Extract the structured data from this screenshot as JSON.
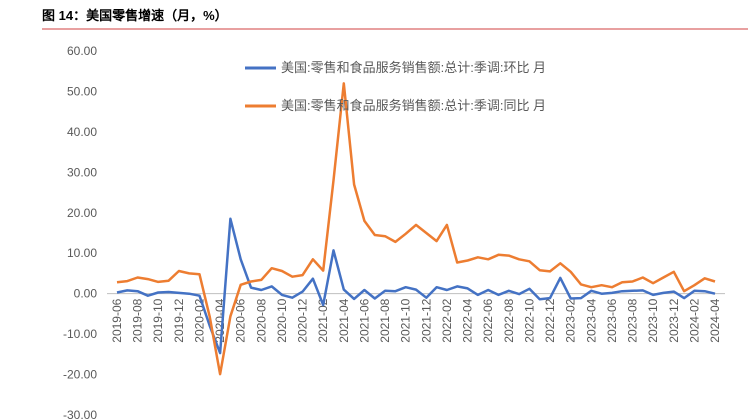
{
  "header": {
    "title": "图 14：美国零售增速（月，%）"
  },
  "chart_data": {
    "type": "line",
    "categories": [
      "2019-06",
      null,
      "2019-08",
      null,
      "2019-10",
      null,
      "2019-12",
      null,
      "2020-02",
      null,
      "2020-04",
      null,
      "2020-06",
      null,
      "2020-08",
      null,
      "2020-10",
      null,
      "2020-12",
      null,
      "2021-02",
      null,
      "2021-04",
      null,
      "2021-06",
      null,
      "2021-08",
      null,
      "2021-10",
      null,
      "2021-12",
      null,
      "2022-02",
      null,
      "2022-04",
      null,
      "2022-06",
      null,
      "2022-08",
      null,
      "2022-10",
      null,
      "2022-12",
      null,
      "2023-02",
      null,
      "2023-04",
      null,
      "2023-06",
      null,
      "2023-08",
      null,
      "2023-10",
      null,
      "2023-12",
      null,
      "2024-02",
      null,
      "2024-04"
    ],
    "series": [
      {
        "name": "美国:零售和食品服务销售额:总计:季调:环比 月",
        "color": "#4472c4",
        "values": [
          0.3,
          0.8,
          0.6,
          -0.5,
          0.3,
          0.4,
          0.2,
          0.0,
          -0.5,
          -8.0,
          -14.7,
          18.5,
          8.5,
          1.5,
          0.9,
          1.8,
          -0.3,
          -1.0,
          0.5,
          3.7,
          -2.8,
          10.7,
          1.0,
          -1.3,
          0.9,
          -1.2,
          0.7,
          0.6,
          1.6,
          1.0,
          -1.0,
          1.6,
          0.9,
          1.8,
          1.3,
          -0.3,
          0.9,
          -0.3,
          0.7,
          -0.1,
          1.2,
          -1.4,
          -1.1,
          3.9,
          -1.2,
          -1.1,
          0.7,
          0.0,
          0.2,
          0.6,
          0.7,
          0.8,
          -0.3,
          0.2,
          0.5,
          -1.1,
          0.7,
          0.6,
          0.0
        ]
      },
      {
        "name": "美国:零售和食品服务销售额:总计:季调:同比 月",
        "color": "#ed7d31",
        "values": [
          2.8,
          3.1,
          4.0,
          3.6,
          2.9,
          3.2,
          5.6,
          5.0,
          4.8,
          -5.8,
          -19.9,
          -5.6,
          2.2,
          3.0,
          3.4,
          6.3,
          5.6,
          4.2,
          4.6,
          8.5,
          5.7,
          28.0,
          52.0,
          27.0,
          18.0,
          14.5,
          14.2,
          12.8,
          14.8,
          17.0,
          15.0,
          13.0,
          17.0,
          7.7,
          8.2,
          9.0,
          8.5,
          9.6,
          9.4,
          8.5,
          8.0,
          5.8,
          5.5,
          7.5,
          5.4,
          2.3,
          1.6,
          2.1,
          1.6,
          2.8,
          3.0,
          4.0,
          2.6,
          4.0,
          5.4,
          0.6,
          2.1,
          3.8,
          3.0
        ]
      }
    ],
    "ylim": [
      -30,
      60
    ],
    "yticks": [
      {
        "value": -30,
        "label": "-30.00"
      },
      {
        "value": -20,
        "label": "-20.00"
      },
      {
        "value": -10,
        "label": "-10.00"
      },
      {
        "value": 0,
        "label": "0.00"
      },
      {
        "value": 10,
        "label": "10.00"
      },
      {
        "value": 20,
        "label": "20.00"
      },
      {
        "value": 30,
        "label": "30.00"
      },
      {
        "value": 40,
        "label": "40.00"
      },
      {
        "value": 50,
        "label": "50.00"
      },
      {
        "value": 60,
        "label": "60.00"
      }
    ],
    "grid": false
  }
}
